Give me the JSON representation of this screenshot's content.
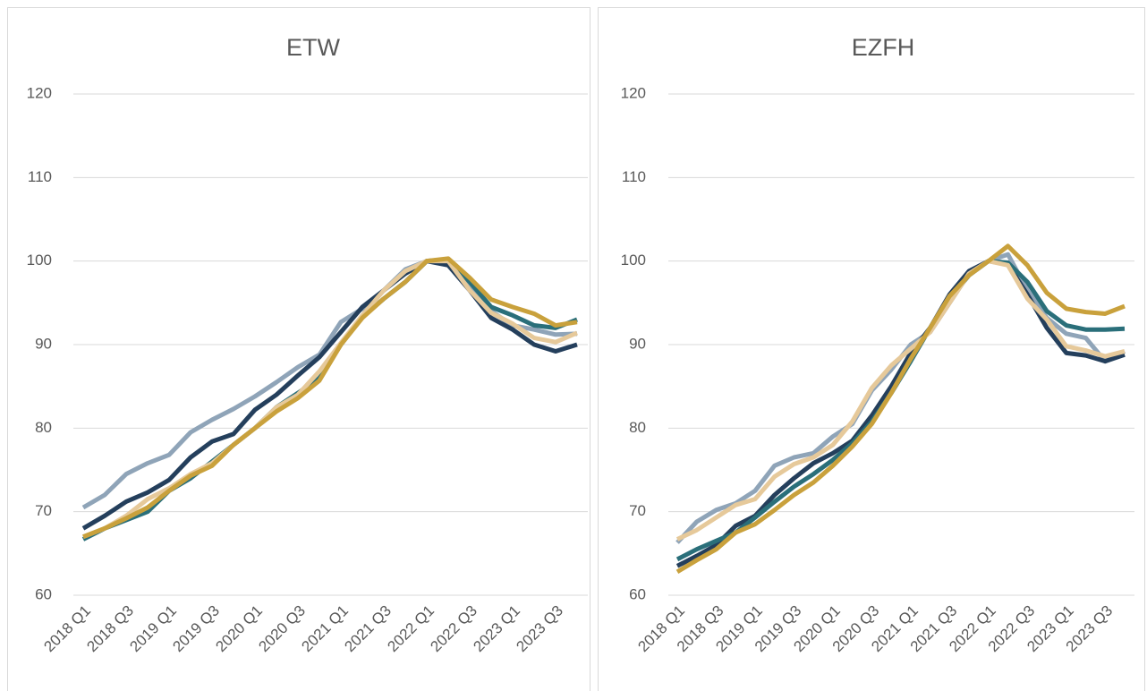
{
  "chart_data": [
    {
      "type": "line",
      "title": "ETW",
      "categories": [
        "2018 Q1",
        null,
        "2018 Q3",
        null,
        "2019 Q1",
        null,
        "2019 Q3",
        null,
        "2020 Q1",
        null,
        "2020 Q3",
        null,
        "2021 Q1",
        null,
        "2021 Q3",
        null,
        "2022 Q1",
        null,
        "2022 Q3",
        null,
        "2023 Q1",
        null,
        "2023 Q3",
        null
      ],
      "ylim": [
        60,
        120
      ],
      "yticks": [
        60,
        70,
        80,
        90,
        100,
        110,
        120
      ],
      "grid": true,
      "series": [
        {
          "color": "#8fa4b8",
          "values": [
            70.5,
            72,
            74.5,
            75.8,
            76.8,
            79.5,
            81,
            82.3,
            83.8,
            85.5,
            87.3,
            88.8,
            92.7,
            94.3,
            96.5,
            99,
            100,
            100,
            97,
            94,
            92.3,
            91.8,
            91.2,
            91.3
          ]
        },
        {
          "color": "#243f5c",
          "values": [
            68,
            69.5,
            71.2,
            72.3,
            73.8,
            76.5,
            78.4,
            79.3,
            82.2,
            84,
            86.3,
            88.5,
            91.5,
            94.5,
            96.5,
            98.5,
            100,
            99.5,
            96.5,
            93.2,
            91.8,
            90,
            89.2,
            90
          ]
        },
        {
          "color": "#2a6f7a",
          "values": [
            66.7,
            68,
            69,
            70,
            72.5,
            74,
            76,
            78,
            80,
            82.5,
            84.2,
            86,
            90,
            93.3,
            95.5,
            97.5,
            100,
            100.2,
            97.5,
            94.5,
            93.5,
            92.3,
            92,
            93
          ]
        },
        {
          "color": "#e6c99a",
          "values": [
            67,
            68,
            69.5,
            71.5,
            72.8,
            74.5,
            75.8,
            78,
            80,
            82.5,
            84,
            86.8,
            90.2,
            93.5,
            96.5,
            98.8,
            100,
            100,
            96.5,
            93.8,
            92.5,
            90.8,
            90.3,
            91.4
          ]
        },
        {
          "color": "#c9a13c",
          "values": [
            67,
            68,
            69.2,
            70.5,
            72.5,
            74.3,
            75.5,
            78,
            80,
            82,
            83.6,
            85.7,
            90,
            93.2,
            95.5,
            97.5,
            100,
            100.3,
            98,
            95.4,
            94.5,
            93.7,
            92.3,
            92.7
          ]
        }
      ]
    },
    {
      "type": "line",
      "title": "EZFH",
      "categories": [
        "2018 Q1",
        null,
        "2018 Q3",
        null,
        "2019 Q1",
        null,
        "2019 Q3",
        null,
        "2020 Q1",
        null,
        "2020 Q3",
        null,
        "2021 Q1",
        null,
        "2021 Q3",
        null,
        "2022 Q1",
        null,
        "2022 Q3",
        null,
        "2023 Q1",
        null,
        "2023 Q3",
        null
      ],
      "ylim": [
        60,
        120
      ],
      "yticks": [
        60,
        70,
        80,
        90,
        100,
        110,
        120
      ],
      "grid": true,
      "series": [
        {
          "color": "#8fa4b8",
          "values": [
            66.3,
            68.8,
            70.2,
            71,
            72.5,
            75.5,
            76.5,
            77,
            79,
            80.5,
            84.5,
            87,
            90,
            91.5,
            95,
            98.5,
            100,
            100.8,
            96.5,
            93.2,
            91.3,
            90.8,
            88,
            89.2
          ]
        },
        {
          "color": "#243f5c",
          "values": [
            63.5,
            64.7,
            66,
            68.3,
            69.5,
            72,
            74,
            75.8,
            77,
            78.5,
            81.5,
            85,
            89,
            92,
            96,
            98.8,
            100,
            99.6,
            96,
            92,
            89,
            88.7,
            88,
            88.8
          ]
        },
        {
          "color": "#2a6f7a",
          "values": [
            64.3,
            65.5,
            66.5,
            67.5,
            69.3,
            71.2,
            73,
            74.5,
            76.2,
            78.2,
            80.8,
            84.2,
            88,
            92,
            95.5,
            98.3,
            100,
            99.8,
            97.5,
            94,
            92.3,
            91.8,
            91.8,
            91.9
          ]
        },
        {
          "color": "#e6c99a",
          "values": [
            66.7,
            67.8,
            69.3,
            70.8,
            71.5,
            74.2,
            75.7,
            76.5,
            78,
            80.8,
            84.8,
            87.5,
            89.5,
            91.5,
            95,
            98.5,
            100,
            99.5,
            95.5,
            93,
            89.8,
            89.3,
            88.6,
            89.2
          ]
        },
        {
          "color": "#c9a13c",
          "values": [
            62.8,
            64.2,
            65.5,
            67.5,
            68.5,
            70.2,
            72,
            73.5,
            75.5,
            77.8,
            80.5,
            84.2,
            88.3,
            92,
            95.8,
            98.3,
            100,
            101.8,
            99.5,
            96.2,
            94.3,
            93.9,
            93.7,
            94.6
          ]
        }
      ]
    }
  ]
}
